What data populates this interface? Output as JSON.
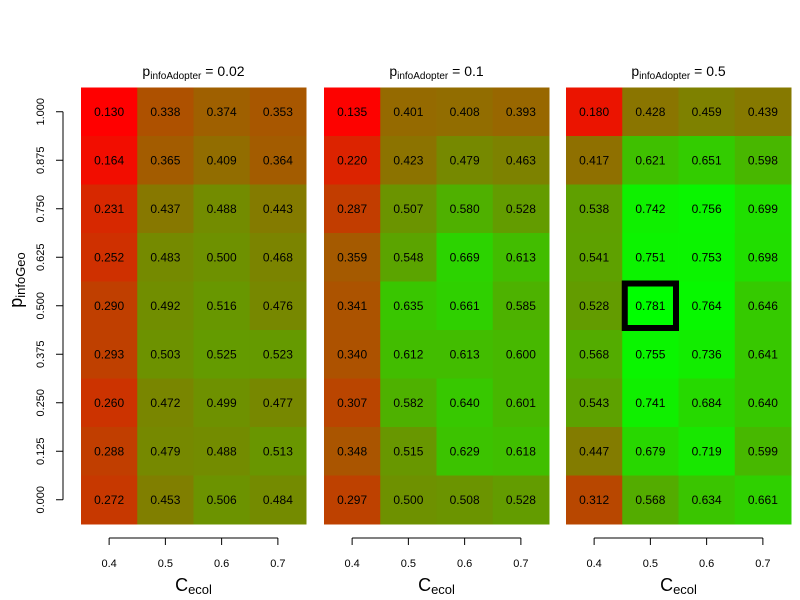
{
  "chart_data": {
    "type": "heatmap",
    "x_ticks": [
      "0.4",
      "0.5",
      "0.6",
      "0.7"
    ],
    "y_ticks": [
      "0.000",
      "0.125",
      "0.250",
      "0.375",
      "0.500",
      "0.625",
      "0.750",
      "0.875",
      "1.000"
    ],
    "x_values": [
      0.4,
      0.5,
      0.6,
      0.7
    ],
    "y_values": [
      0.0,
      0.125,
      0.25,
      0.375,
      0.5,
      0.625,
      0.75,
      0.875,
      1.0
    ],
    "xlabel": {
      "main": "C",
      "sub": "ecol"
    },
    "ylabel": {
      "main": "p",
      "sub": "infoGeo"
    },
    "color_scale": {
      "low": "#ff0000",
      "high": "#00ff00",
      "range": [
        0.13,
        0.781
      ]
    },
    "highlight": {
      "panel": 2,
      "x": 0.5,
      "y": 0.5,
      "value": "0.781"
    },
    "panels": [
      {
        "title": {
          "main": "p",
          "sub": "infoAdopter",
          "suffix": " = 0.02"
        },
        "rows": [
          [
            "0.130",
            "0.338",
            "0.374",
            "0.353"
          ],
          [
            "0.164",
            "0.365",
            "0.409",
            "0.364"
          ],
          [
            "0.231",
            "0.437",
            "0.488",
            "0.443"
          ],
          [
            "0.252",
            "0.483",
            "0.500",
            "0.468"
          ],
          [
            "0.290",
            "0.492",
            "0.516",
            "0.476"
          ],
          [
            "0.293",
            "0.503",
            "0.525",
            "0.523"
          ],
          [
            "0.260",
            "0.472",
            "0.499",
            "0.477"
          ],
          [
            "0.288",
            "0.479",
            "0.488",
            "0.513"
          ],
          [
            "0.272",
            "0.453",
            "0.506",
            "0.484"
          ]
        ]
      },
      {
        "title": {
          "main": "p",
          "sub": "infoAdopter",
          "suffix": " = 0.1"
        },
        "rows": [
          [
            "0.135",
            "0.401",
            "0.408",
            "0.393"
          ],
          [
            "0.220",
            "0.423",
            "0.479",
            "0.463"
          ],
          [
            "0.287",
            "0.507",
            "0.580",
            "0.528"
          ],
          [
            "0.359",
            "0.548",
            "0.669",
            "0.613"
          ],
          [
            "0.341",
            "0.635",
            "0.661",
            "0.585"
          ],
          [
            "0.340",
            "0.612",
            "0.613",
            "0.600"
          ],
          [
            "0.307",
            "0.582",
            "0.640",
            "0.601"
          ],
          [
            "0.348",
            "0.515",
            "0.629",
            "0.618"
          ],
          [
            "0.297",
            "0.500",
            "0.508",
            "0.528"
          ]
        ]
      },
      {
        "title": {
          "main": "p",
          "sub": "infoAdopter",
          "suffix": " = 0.5"
        },
        "rows": [
          [
            "0.180",
            "0.428",
            "0.459",
            "0.439"
          ],
          [
            "0.417",
            "0.621",
            "0.651",
            "0.598"
          ],
          [
            "0.538",
            "0.742",
            "0.756",
            "0.699"
          ],
          [
            "0.541",
            "0.751",
            "0.753",
            "0.698"
          ],
          [
            "0.528",
            "0.781",
            "0.764",
            "0.646"
          ],
          [
            "0.568",
            "0.755",
            "0.736",
            "0.641"
          ],
          [
            "0.543",
            "0.741",
            "0.684",
            "0.640"
          ],
          [
            "0.447",
            "0.679",
            "0.719",
            "0.599"
          ],
          [
            "0.312",
            "0.568",
            "0.634",
            "0.661"
          ]
        ]
      }
    ]
  }
}
